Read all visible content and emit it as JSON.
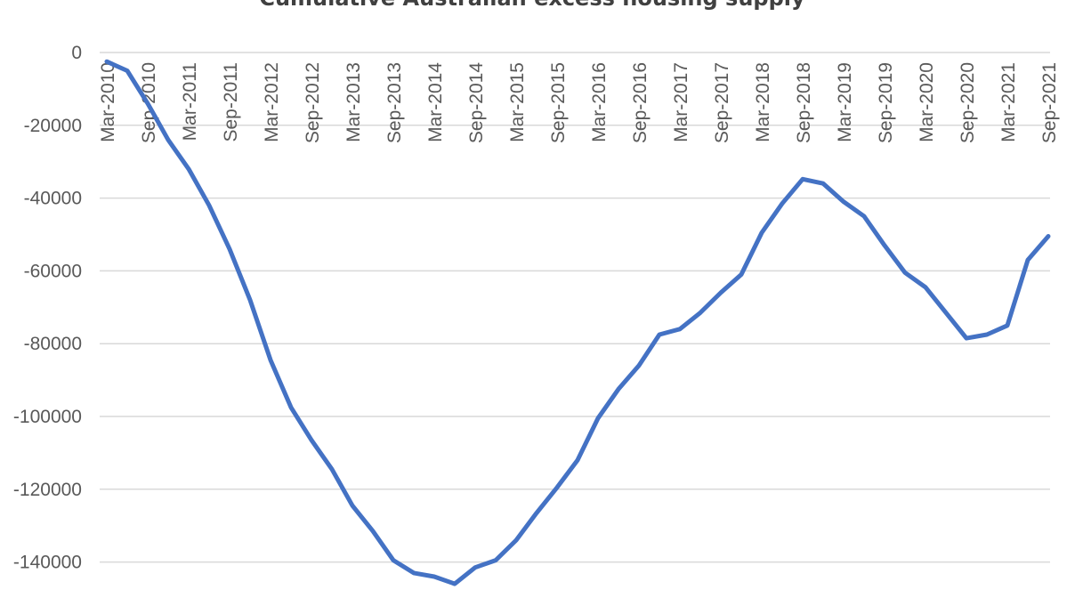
{
  "chart_data": {
    "type": "line",
    "title": "Cumulative Australian excess housing supply",
    "xlabel": "",
    "ylabel": "",
    "ylim": [
      -150000,
      0
    ],
    "yticks": [
      0,
      -20000,
      -40000,
      -60000,
      -80000,
      -100000,
      -120000,
      -140000
    ],
    "ytick_labels": [
      "0",
      "-20000",
      "-40000",
      "-60000",
      "-80000",
      "-100000",
      "-120000",
      "-140000"
    ],
    "xtick_labels": [
      "Mar-2010",
      "Sep-2010",
      "Mar-2011",
      "Sep-2011",
      "Mar-2012",
      "Sep-2012",
      "Mar-2013",
      "Sep-2013",
      "Mar-2014",
      "Sep-2014",
      "Mar-2015",
      "Sep-2015",
      "Mar-2016",
      "Sep-2016",
      "Mar-2017",
      "Sep-2017",
      "Mar-2018",
      "Sep-2018",
      "Mar-2019",
      "Sep-2019",
      "Mar-2020",
      "Sep-2020",
      "Mar-2021",
      "Sep-2021"
    ],
    "x": [
      "Mar-2010",
      "Jun-2010",
      "Sep-2010",
      "Dec-2010",
      "Mar-2011",
      "Jun-2011",
      "Sep-2011",
      "Dec-2011",
      "Mar-2012",
      "Jun-2012",
      "Sep-2012",
      "Dec-2012",
      "Mar-2013",
      "Jun-2013",
      "Sep-2013",
      "Dec-2013",
      "Mar-2014",
      "Jun-2014",
      "Sep-2014",
      "Dec-2014",
      "Mar-2015",
      "Jun-2015",
      "Sep-2015",
      "Dec-2015",
      "Mar-2016",
      "Jun-2016",
      "Sep-2016",
      "Dec-2016",
      "Mar-2017",
      "Jun-2017",
      "Sep-2017",
      "Dec-2017",
      "Mar-2018",
      "Jun-2018",
      "Sep-2018",
      "Dec-2018",
      "Mar-2019",
      "Jun-2019",
      "Sep-2019",
      "Dec-2019",
      "Mar-2020",
      "Jun-2020",
      "Sep-2020",
      "Dec-2020",
      "Mar-2021",
      "Jun-2021",
      "Sep-2021"
    ],
    "series": [
      {
        "values": [
          -2500,
          -5000,
          -14000,
          -24000,
          -32000,
          -42000,
          -54000,
          -68000,
          -84500,
          -97500,
          -106500,
          -114500,
          -124500,
          -131500,
          -139500,
          -143000,
          -144000,
          -146000,
          -141500,
          -139500,
          -134000,
          -126500,
          -119500,
          -112000,
          -100500,
          -92500,
          -86000,
          -77500,
          -76000,
          -71500,
          -66000,
          -61000,
          -49500,
          -41500,
          -34800,
          -36000,
          -41000,
          -45000,
          -53000,
          -60500,
          -64500,
          -71500,
          -78500,
          -77500,
          -75000,
          -57000,
          -50500
        ],
        "color": "#4472c4"
      }
    ],
    "grid": true,
    "legend": "none"
  }
}
